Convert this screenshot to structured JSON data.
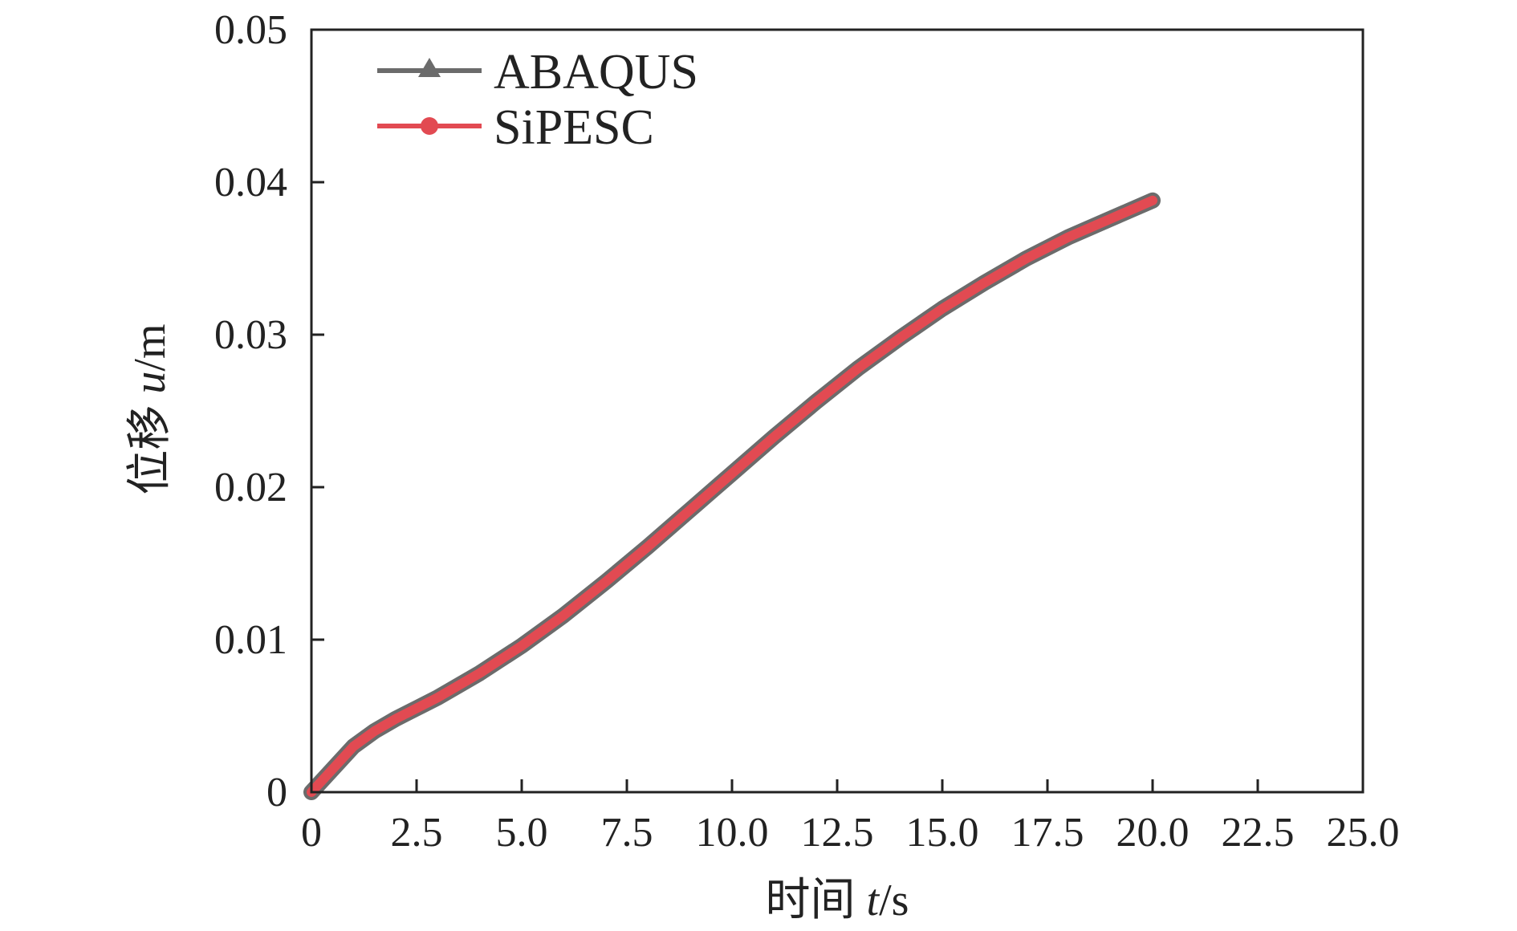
{
  "chart_data": {
    "type": "line",
    "title": "",
    "xlabel": {
      "prefix": "时间 ",
      "var": "t",
      "suffix": "/s"
    },
    "ylabel": {
      "prefix": "位移 ",
      "var": "u",
      "suffix": "/m"
    },
    "xlim": [
      0,
      25
    ],
    "ylim": [
      0,
      0.05
    ],
    "xticks": [
      0,
      2.5,
      5,
      7.5,
      10,
      12.5,
      15,
      17.5,
      20,
      22.5,
      25
    ],
    "xtick_labels": [
      "0",
      "2.5",
      "5.0",
      "7.5",
      "10.0",
      "12.5",
      "15.0",
      "17.5",
      "20.0",
      "22.5",
      "25.0"
    ],
    "yticks": [
      0,
      0.01,
      0.02,
      0.03,
      0.04,
      0.05
    ],
    "ytick_labels": [
      "0",
      "0.01",
      "0.02",
      "0.03",
      "0.04",
      "0.05"
    ],
    "grid": false,
    "legend_position": "top-left",
    "x": [
      0,
      0.5,
      1,
      1.5,
      2,
      2.5,
      3,
      4,
      5,
      6,
      7,
      8,
      9,
      10,
      11,
      12,
      13,
      14,
      15,
      16,
      17,
      18,
      19,
      20
    ],
    "series": [
      {
        "name": "ABAQUS",
        "color": "#6b6b6b",
        "marker": "triangle",
        "values": [
          0,
          0.0015,
          0.003,
          0.004,
          0.0048,
          0.0055,
          0.0062,
          0.0078,
          0.0096,
          0.0116,
          0.0138,
          0.0161,
          0.0185,
          0.0209,
          0.0233,
          0.0256,
          0.0278,
          0.0298,
          0.0317,
          0.0334,
          0.035,
          0.0364,
          0.0376,
          0.0388
        ]
      },
      {
        "name": "SiPESC",
        "color": "#e24a52",
        "marker": "circle",
        "values": [
          0,
          0.0015,
          0.003,
          0.004,
          0.0048,
          0.0055,
          0.0062,
          0.0078,
          0.0096,
          0.0116,
          0.0138,
          0.0161,
          0.0185,
          0.0209,
          0.0233,
          0.0256,
          0.0278,
          0.0298,
          0.0317,
          0.0334,
          0.035,
          0.0364,
          0.0376,
          0.0388
        ]
      }
    ]
  }
}
